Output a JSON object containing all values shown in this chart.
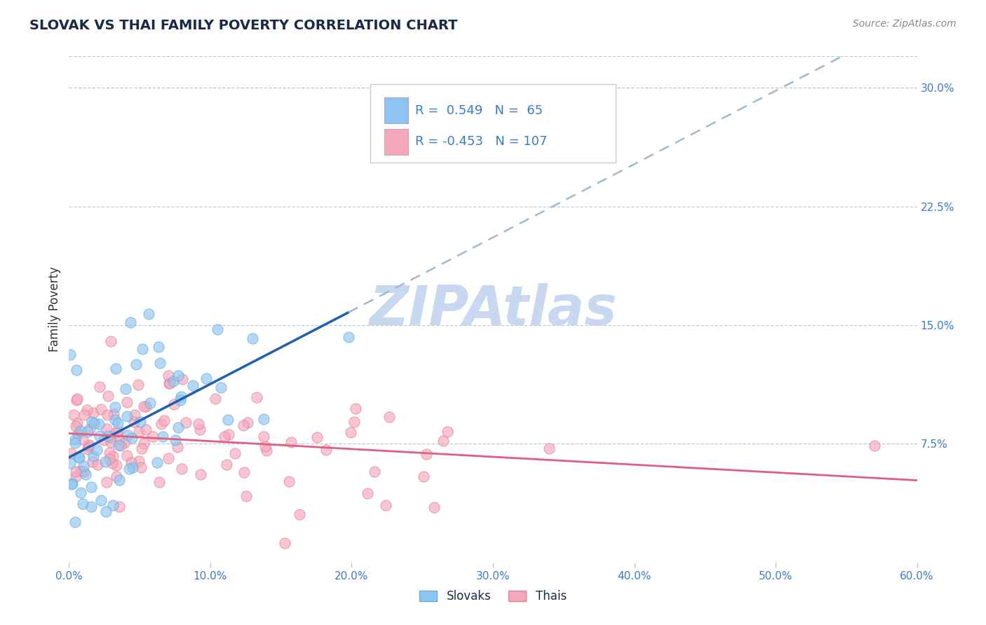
{
  "title": "SLOVAK VS THAI FAMILY POVERTY CORRELATION CHART",
  "source_text": "Source: ZipAtlas.com",
  "ylabel": "Family Poverty",
  "xlim": [
    0.0,
    0.6
  ],
  "ylim": [
    0.0,
    0.32
  ],
  "xticks": [
    0.0,
    0.1,
    0.2,
    0.3,
    0.4,
    0.5,
    0.6
  ],
  "xticklabels": [
    "0.0%",
    "10.0%",
    "20.0%",
    "30.0%",
    "40.0%",
    "50.0%",
    "60.0%"
  ],
  "yticks_right": [
    0.075,
    0.15,
    0.225,
    0.3
  ],
  "ytick_right_labels": [
    "7.5%",
    "15.0%",
    "22.5%",
    "30.0%"
  ],
  "slovak_R": 0.549,
  "slovak_N": 65,
  "thai_R": -0.453,
  "thai_N": 107,
  "slovak_color": "#8EC4F0",
  "slovak_edge_color": "#6AABDF",
  "thai_color": "#F5A8BC",
  "thai_edge_color": "#E08098",
  "slovak_line_color": "#2060B0",
  "thai_line_color": "#E06080",
  "dashed_line_color": "#A0B8D0",
  "watermark_color": "#C8D8F0",
  "title_color": "#1A2A4A",
  "ylabel_color": "#333333",
  "axis_tick_color": "#3A7CC8",
  "source_color": "#888888",
  "background_color": "#FFFFFF",
  "grid_color": "#B8CCDD",
  "title_fontsize": 14,
  "source_fontsize": 10,
  "legend_R_color": "#3A7CC8",
  "legend_N_color": "#3A7CC8"
}
